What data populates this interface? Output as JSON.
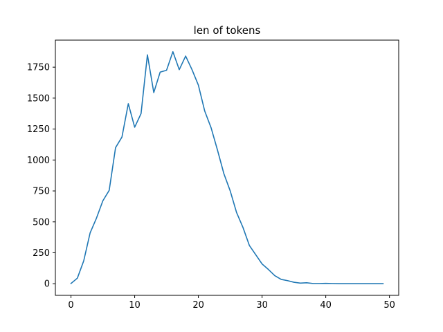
{
  "chart_data": {
    "type": "line",
    "title": "len of tokens",
    "xlabel": "",
    "ylabel": "",
    "xlim": [
      -2.45,
      51.45
    ],
    "ylim": [
      -93.75,
      1968.75
    ],
    "xticks": [
      0,
      10,
      20,
      30,
      40,
      50
    ],
    "yticks": [
      0,
      250,
      500,
      750,
      1000,
      1250,
      1500,
      1750
    ],
    "xtick_labels": [
      "0",
      "10",
      "20",
      "30",
      "40",
      "50"
    ],
    "ytick_labels": [
      "0",
      "250",
      "500",
      "750",
      "1000",
      "1250",
      "1500",
      "1750"
    ],
    "grid": false,
    "series": [
      {
        "color": "#1f77b4",
        "x": [
          0,
          1,
          2,
          3,
          4,
          5,
          6,
          7,
          8,
          9,
          10,
          11,
          12,
          13,
          14,
          15,
          16,
          17,
          18,
          19,
          20,
          21,
          22,
          23,
          24,
          25,
          26,
          27,
          28,
          29,
          30,
          31,
          32,
          33,
          34,
          35,
          36,
          37,
          38,
          39,
          40,
          41,
          42,
          43,
          44,
          45,
          46,
          47,
          48,
          49
        ],
        "values": [
          2,
          45,
          185,
          410,
          530,
          670,
          755,
          1100,
          1185,
          1455,
          1265,
          1375,
          1850,
          1545,
          1710,
          1725,
          1875,
          1730,
          1840,
          1730,
          1605,
          1395,
          1260,
          1080,
          890,
          750,
          575,
          455,
          310,
          235,
          160,
          115,
          65,
          35,
          25,
          12,
          5,
          8,
          2,
          2,
          3,
          2,
          0,
          0,
          0,
          0,
          0,
          0,
          0,
          0
        ]
      }
    ]
  }
}
